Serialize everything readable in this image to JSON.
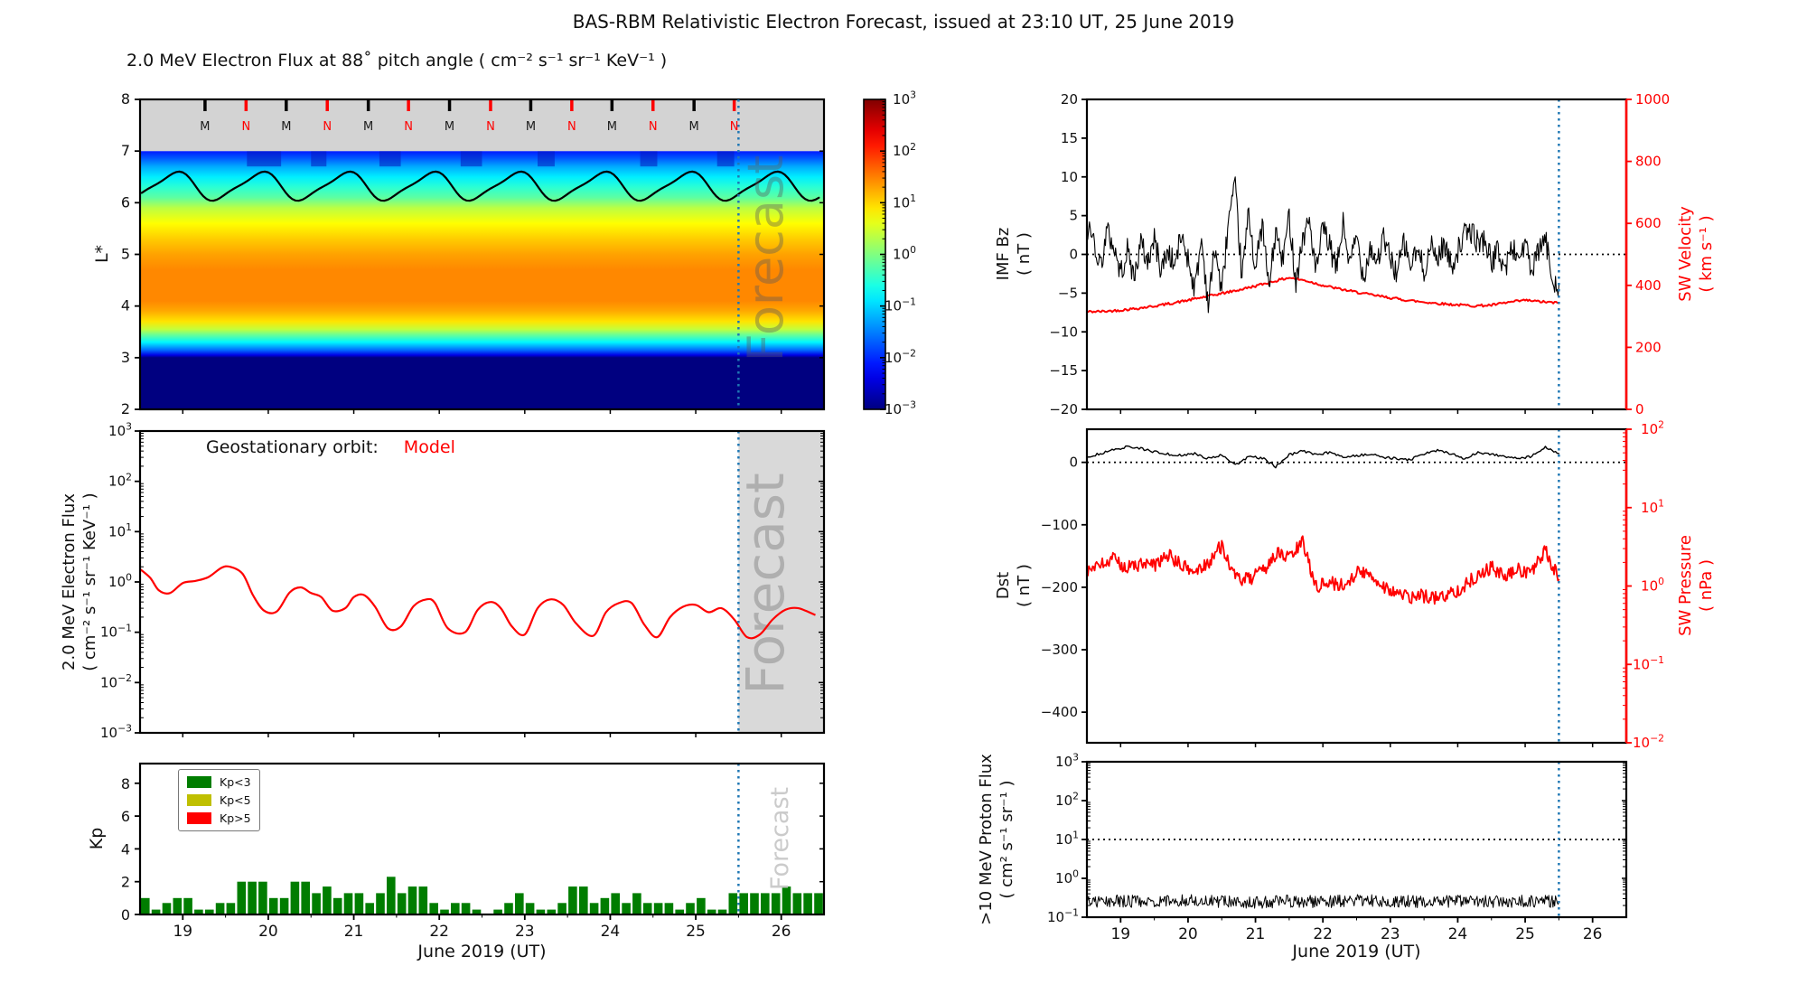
{
  "title": "BAS-RBM Relativistic Electron Forecast, issued at 23:10 UT, 25 June 2019",
  "watermark": "Forecast",
  "log_base": "10",
  "labels": {
    "spectrogram_title": "2.0 MeV Electron Flux at 88˚ pitch angle ( cm⁻² s⁻¹ sr⁻¹ KeV⁻¹ )",
    "lstar": "L*",
    "flux_ylabel_1": "2.0 MeV Electron Flux",
    "flux_ylabel_2": "( cm⁻² s⁻¹ sr⁻¹ KeV⁻¹ )",
    "annotation_orbit": "Geostationary orbit:",
    "annotation_model": "Model",
    "kp_ylabel": "Kp",
    "xlabel": "June 2019 (UT)",
    "imf_ylabel_1": "IMF Bz",
    "imf_ylabel_2": "( nT )",
    "sw_velocity_1": "SW Velocity",
    "sw_velocity_2": "( km s⁻¹ )",
    "dst_ylabel_1": "Dst",
    "dst_ylabel_2": "( nT )",
    "sw_pressure_1": "SW Pressure",
    "sw_pressure_2": "( nPa )",
    "proton_ylabel_1": ">10 MeV Proton Flux",
    "proton_ylabel_2": "( cm² s⁻¹ sr⁻¹ )"
  },
  "colors": {
    "forecast_line": "#1f77b4",
    "model_red": "#ff0000",
    "kp_green": "#007d00",
    "kp_yellow": "#bfbf00",
    "kp_red": "#ff0000",
    "shade": "#d9d9d9",
    "band_gray": "#d3d3d3",
    "axis_red": "#ff0000",
    "mn_black": "#1a1a1a"
  },
  "x_axis": {
    "range": [
      18.5,
      26.5
    ],
    "ticks": [
      19,
      20,
      21,
      22,
      23,
      24,
      25,
      26
    ],
    "forecast_start": 25.5
  },
  "chart_data": [
    {
      "id": "spectrogram",
      "type": "heatmap",
      "y_range": [
        2,
        8
      ],
      "y_ticks": [
        2,
        3,
        4,
        5,
        6,
        7,
        8
      ],
      "log_color_range": [
        -3,
        3
      ],
      "colorbar_tick_exponents": [
        3,
        2,
        1,
        0,
        -1,
        -2,
        -3
      ],
      "profile_Lstar_logflux": [
        [
          7.0,
          -2.1
        ],
        [
          6.85,
          -1.7
        ],
        [
          6.7,
          -1.25
        ],
        [
          6.5,
          -0.85
        ],
        [
          6.3,
          -0.5
        ],
        [
          6.1,
          -0.2
        ],
        [
          5.9,
          0.35
        ],
        [
          5.6,
          0.75
        ],
        [
          5.3,
          1.05
        ],
        [
          5.0,
          1.3
        ],
        [
          4.7,
          1.45
        ],
        [
          4.1,
          1.45
        ],
        [
          3.9,
          1.25
        ],
        [
          3.7,
          0.9
        ],
        [
          3.55,
          0.4
        ],
        [
          3.45,
          -0.1
        ],
        [
          3.3,
          -0.8
        ],
        [
          3.15,
          -1.6
        ],
        [
          3.05,
          -2.4
        ],
        [
          3.0,
          -3.0
        ],
        [
          2.0,
          -3.0
        ]
      ],
      "band": {
        "y_range": [
          7,
          8
        ],
        "tick_labels": [
          "M",
          "N",
          "M",
          "N",
          "M",
          "N",
          "M",
          "N",
          "M",
          "N",
          "M",
          "N",
          "M",
          "N"
        ],
        "tick_days": [
          19.26,
          19.74,
          20.21,
          20.69,
          21.17,
          21.64,
          22.12,
          22.6,
          23.07,
          23.55,
          24.02,
          24.5,
          24.98,
          25.45
        ]
      },
      "plasmapause_dashed": {
        "mean": 6.32,
        "amplitude": 0.26,
        "period_days": 1.0,
        "phase_day": 18.65,
        "second_harmonic": -0.06
      },
      "dark_patches_days": [
        [
          19.75,
          20.15
        ],
        [
          20.5,
          20.68
        ],
        [
          21.3,
          21.55
        ],
        [
          22.25,
          22.5
        ],
        [
          23.15,
          23.35
        ],
        [
          24.35,
          24.55
        ],
        [
          25.25,
          25.45
        ]
      ]
    },
    {
      "id": "geo_flux",
      "type": "line",
      "ylog_range": [
        -3,
        3
      ],
      "y_tick_exponents": [
        3,
        2,
        1,
        0,
        -1,
        -2,
        -3
      ],
      "series": [
        {
          "name": "Model",
          "color": "#ff0000",
          "points": [
            [
              18.5,
              1.8
            ],
            [
              18.62,
              1.2
            ],
            [
              18.72,
              0.68
            ],
            [
              18.85,
              0.6
            ],
            [
              19.0,
              0.95
            ],
            [
              19.15,
              1.05
            ],
            [
              19.3,
              1.25
            ],
            [
              19.45,
              1.9
            ],
            [
              19.55,
              2.0
            ],
            [
              19.7,
              1.45
            ],
            [
              19.82,
              0.55
            ],
            [
              19.95,
              0.27
            ],
            [
              20.1,
              0.26
            ],
            [
              20.25,
              0.62
            ],
            [
              20.38,
              0.78
            ],
            [
              20.5,
              0.6
            ],
            [
              20.62,
              0.5
            ],
            [
              20.75,
              0.27
            ],
            [
              20.9,
              0.3
            ],
            [
              21.0,
              0.5
            ],
            [
              21.12,
              0.55
            ],
            [
              21.25,
              0.32
            ],
            [
              21.4,
              0.12
            ],
            [
              21.55,
              0.13
            ],
            [
              21.7,
              0.33
            ],
            [
              21.85,
              0.45
            ],
            [
              21.95,
              0.38
            ],
            [
              22.1,
              0.12
            ],
            [
              22.3,
              0.1
            ],
            [
              22.45,
              0.28
            ],
            [
              22.6,
              0.4
            ],
            [
              22.72,
              0.3
            ],
            [
              22.85,
              0.13
            ],
            [
              23.0,
              0.09
            ],
            [
              23.15,
              0.3
            ],
            [
              23.3,
              0.45
            ],
            [
              23.45,
              0.35
            ],
            [
              23.6,
              0.15
            ],
            [
              23.8,
              0.085
            ],
            [
              23.95,
              0.25
            ],
            [
              24.1,
              0.38
            ],
            [
              24.25,
              0.38
            ],
            [
              24.4,
              0.14
            ],
            [
              24.55,
              0.08
            ],
            [
              24.7,
              0.2
            ],
            [
              24.85,
              0.32
            ],
            [
              25.0,
              0.35
            ],
            [
              25.15,
              0.25
            ],
            [
              25.3,
              0.3
            ],
            [
              25.45,
              0.18
            ],
            [
              25.6,
              0.08
            ],
            [
              25.75,
              0.09
            ],
            [
              25.9,
              0.18
            ],
            [
              26.05,
              0.28
            ],
            [
              26.2,
              0.3
            ],
            [
              26.4,
              0.22
            ]
          ]
        }
      ]
    },
    {
      "id": "kp",
      "type": "bar",
      "y_range": [
        0,
        9.2
      ],
      "y_ticks": [
        0,
        2,
        4,
        6,
        8
      ],
      "start_day": 18.5,
      "step_days": 0.125,
      "thresholds": {
        "green_below": 3,
        "yellow_below": 5
      },
      "values": [
        1.0,
        0.3,
        0.7,
        1.0,
        1.0,
        0.3,
        0.3,
        0.7,
        0.7,
        2.0,
        2.0,
        2.0,
        1.0,
        1.0,
        2.0,
        2.0,
        1.3,
        1.7,
        1.0,
        1.3,
        1.3,
        0.7,
        1.3,
        2.3,
        1.3,
        1.7,
        1.7,
        0.7,
        0.3,
        0.7,
        0.7,
        0.3,
        0.0,
        0.3,
        0.7,
        1.3,
        0.7,
        0.3,
        0.3,
        0.7,
        1.7,
        1.7,
        0.7,
        1.0,
        1.3,
        0.7,
        1.3,
        0.7,
        0.7,
        0.7,
        0.3,
        0.7,
        1.0,
        0.3,
        0.3,
        1.3,
        1.3,
        1.3,
        1.3,
        1.3,
        1.7,
        1.3,
        1.3,
        1.3
      ],
      "legend": [
        {
          "label": "Kp<3",
          "color": "#007d00"
        },
        {
          "label": "Kp<5",
          "color": "#bfbf00"
        },
        {
          "label": "Kp>5",
          "color": "#ff0000"
        }
      ]
    },
    {
      "id": "imf_sw",
      "type": "line",
      "left": {
        "range": [
          -20,
          20
        ],
        "ticks": [
          20,
          15,
          10,
          5,
          0,
          -5,
          -10,
          -15,
          -20
        ],
        "zero_line": true
      },
      "right": {
        "range": [
          0,
          1000
        ],
        "ticks": [
          1000,
          800,
          600,
          400,
          200,
          0
        ]
      },
      "bz": {
        "x_start": 18.5,
        "x_step": 0.1,
        "noise": 1.6,
        "values": [
          3.5,
          2,
          -1.5,
          3,
          1,
          -2.5,
          0.5,
          -3,
          1.5,
          -1,
          2,
          -2,
          0.5,
          -1.5,
          2.5,
          -0.5,
          -4.5,
          2,
          -6.5,
          1,
          -5,
          4.5,
          8.5,
          -3,
          5.5,
          -2,
          4,
          -4.5,
          3,
          -1,
          5,
          -3.5,
          2,
          4.5,
          -2.5,
          3.5,
          1,
          -2,
          4,
          -1.5,
          2.5,
          -3,
          1,
          -1,
          2,
          -0.5,
          -2.5,
          1.5,
          -1.5,
          0.5,
          -2,
          1,
          -0.5,
          1.5,
          -1.5,
          0.5,
          2.5,
          3,
          1.5,
          2,
          -1,
          0.5,
          -2,
          1,
          -0.5,
          1.5,
          -2.5,
          0.5,
          2,
          -3,
          -4
        ]
      },
      "velocity": {
        "x_start": 18.5,
        "x_step": 0.25,
        "noise": 4,
        "values": [
          315,
          316,
          320,
          326,
          333,
          342,
          352,
          363,
          374,
          385,
          398,
          412,
          425,
          415,
          400,
          388,
          378,
          368,
          360,
          352,
          346,
          341,
          337,
          334,
          336,
          345,
          352,
          347,
          343
        ]
      }
    },
    {
      "id": "dst_pressure",
      "type": "line",
      "left": {
        "range": [
          -449,
          53
        ],
        "ticks": [
          0,
          -100,
          -200,
          -300,
          -400
        ],
        "zero_line": true
      },
      "right": {
        "log_range": [
          -2,
          2
        ],
        "tick_exponents": [
          2,
          1,
          0,
          -1,
          -2
        ]
      },
      "dst": {
        "x_start": 18.5,
        "x_step": 0.2,
        "noise": 2,
        "values": [
          8,
          14,
          20,
          25,
          22,
          17,
          13,
          11,
          14,
          6,
          12,
          -4,
          9,
          7,
          -7,
          12,
          18,
          12,
          16,
          9,
          11,
          13,
          8,
          6,
          4,
          14,
          19,
          14,
          6,
          16,
          13,
          10,
          5,
          10,
          24,
          14
        ]
      },
      "pressure": {
        "x_start": 18.5,
        "x_step": 0.2,
        "log_noise": 0.09,
        "values": [
          1.6,
          1.8,
          2.2,
          1.7,
          1.9,
          1.8,
          2.5,
          1.8,
          1.5,
          2.0,
          3.3,
          1.25,
          1.2,
          1.5,
          2.6,
          2.3,
          3.6,
          1.0,
          1.1,
          1.0,
          1.5,
          1.4,
          1.0,
          0.8,
          0.7,
          0.75,
          0.7,
          0.8,
          1.0,
          1.4,
          1.7,
          1.3,
          1.6,
          1.5,
          2.8,
          1.2
        ]
      }
    },
    {
      "id": "proton",
      "type": "line",
      "ylog_range": [
        -1,
        3
      ],
      "y_tick_exponents": [
        3,
        2,
        1,
        0,
        -1
      ],
      "threshold_exponent": 1,
      "flux": {
        "x_start": 18.5,
        "x_step": 0.5,
        "log_noise": 0.16,
        "values": [
          0.25,
          0.26,
          0.25,
          0.27,
          0.25,
          0.24,
          0.26,
          0.25,
          0.27,
          0.26,
          0.25,
          0.26,
          0.25,
          0.26,
          0.25
        ]
      }
    }
  ]
}
